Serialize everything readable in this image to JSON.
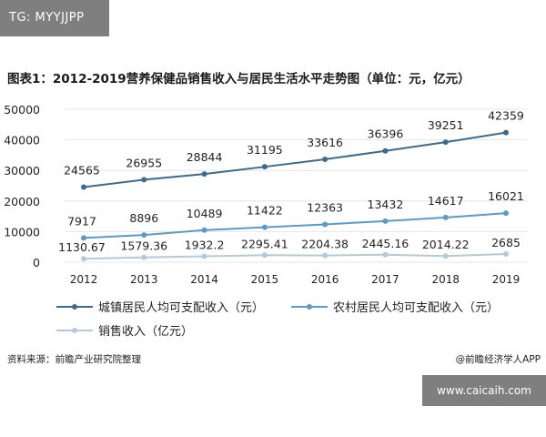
{
  "badge_text": "TG: MYYJJPP",
  "site_text": "www.caicaih.com",
  "footer": {
    "source": "资料来源：前瞻产业研究院整理",
    "brand": "@前瞻经济学人APP"
  },
  "colors": {
    "urban": "#3d6b8e",
    "rural": "#5b9bc8",
    "sales": "#b3c9dd",
    "grid": "#e6e6e6"
  },
  "chart_data": {
    "type": "line",
    "title": "图表1：2012-2019营养保健品销售收入与居民生活水平走势图（单位：元，亿元）",
    "categories": [
      "2012",
      "2013",
      "2014",
      "2015",
      "2016",
      "2017",
      "2018",
      "2019"
    ],
    "ylim": [
      0,
      50000
    ],
    "yticks": [
      "0",
      "10000",
      "20000",
      "30000",
      "40000",
      "50000"
    ],
    "grid": true,
    "legend_position": "bottom",
    "series": [
      {
        "name": "城镇居民人均可支配收入（元）",
        "color_key": "urban",
        "values": [
          24565,
          26955,
          28844,
          31195,
          33616,
          36396,
          39251,
          42359
        ],
        "labels": [
          "24565",
          "26955",
          "28844",
          "31195",
          "33616",
          "36396",
          "39251",
          "42359"
        ]
      },
      {
        "name": "农村居民人均可支配收入（元）",
        "color_key": "rural",
        "values": [
          7917,
          8896,
          10489,
          11422,
          12363,
          13432,
          14617,
          16021
        ],
        "labels": [
          "7917",
          "8896",
          "10489",
          "11422",
          "12363",
          "13432",
          "14617",
          "16021"
        ]
      },
      {
        "name": "销售收入（亿元）",
        "color_key": "sales",
        "values": [
          1130.67,
          1579.36,
          1932.2,
          2295.41,
          2204.38,
          2445.16,
          2014.22,
          2685
        ],
        "labels": [
          "1130.67",
          "1579.36",
          "1932.2",
          "2295.41",
          "2204.38",
          "2445.16",
          "2014.22",
          "2685"
        ]
      }
    ]
  }
}
